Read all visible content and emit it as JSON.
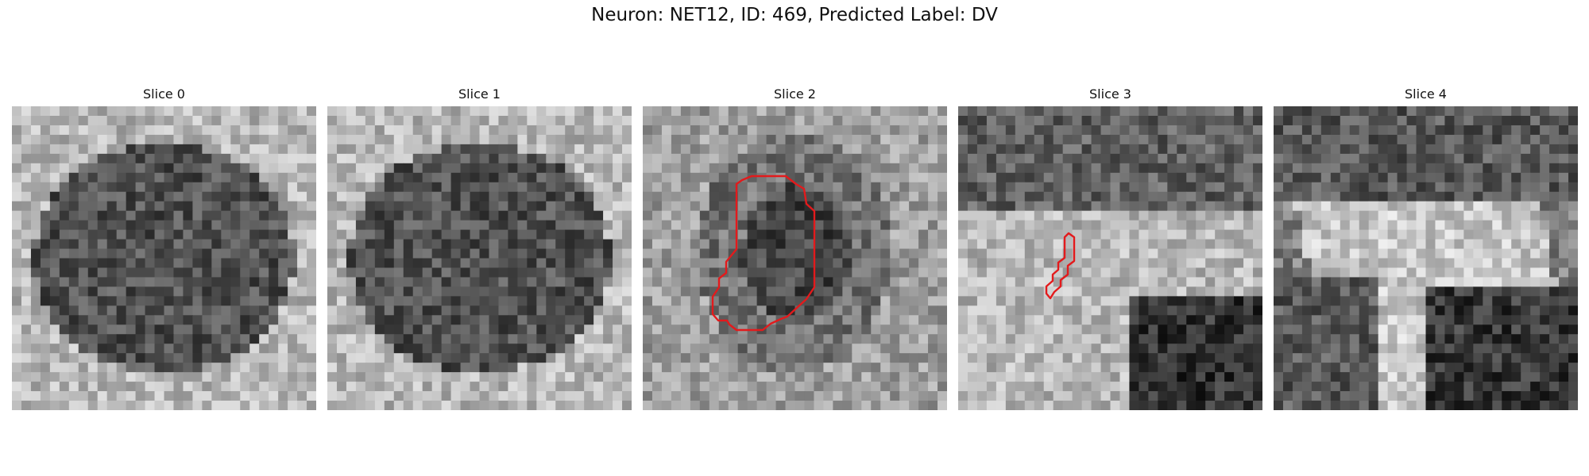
{
  "figure": {
    "title": "Neuron: NET12, ID: 469, Predicted Label: DV"
  },
  "panels": [
    {
      "title": "Slice 0",
      "has_contour": false,
      "pattern": "blob"
    },
    {
      "title": "Slice 1",
      "has_contour": false,
      "pattern": "blob"
    },
    {
      "title": "Slice 2",
      "has_contour": true,
      "pattern": "ring"
    },
    {
      "title": "Slice 3",
      "has_contour": true,
      "pattern": "split"
    },
    {
      "title": "Slice 4",
      "has_contour": false,
      "pattern": "cross"
    }
  ],
  "colors": {
    "contour": "#e31a1c",
    "dark_gray": "#3a3a3a",
    "light_gray": "#d8d8d8"
  }
}
